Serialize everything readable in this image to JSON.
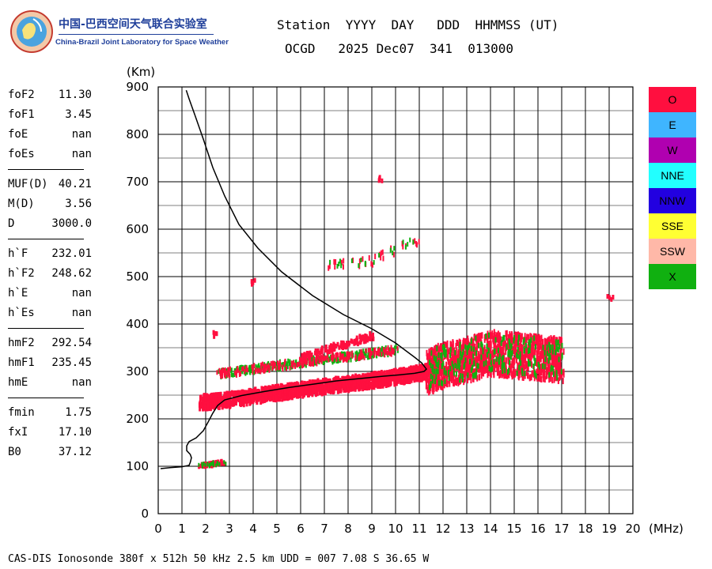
{
  "logo": {
    "cn_text": "中国-巴西空间天气联合实验室",
    "en_text": "China-Brazil Joint Laboratory for Space Weather"
  },
  "header": {
    "line1": "Station  YYYY  DAY   DDD  HHMMSS (UT)",
    "line2": "OCGD   2025 Dec07  341  013000"
  },
  "params": [
    {
      "k": "foF2",
      "v": "11.30"
    },
    {
      "k": "foF1",
      "v": "3.45"
    },
    {
      "k": "foE",
      "v": "nan"
    },
    {
      "k": "foEs",
      "v": "nan"
    },
    {
      "k": "MUF(D)",
      "v": "40.21"
    },
    {
      "k": "M(D)",
      "v": "3.56"
    },
    {
      "k": "D",
      "v": "3000.0"
    },
    {
      "k": "h`F",
      "v": "232.01"
    },
    {
      "k": "h`F2",
      "v": "248.62"
    },
    {
      "k": "h`E",
      "v": "nan"
    },
    {
      "k": "h`Es",
      "v": "nan"
    },
    {
      "k": "hmF2",
      "v": "292.54"
    },
    {
      "k": "hmF1",
      "v": "235.45"
    },
    {
      "k": "hmE",
      "v": "nan"
    },
    {
      "k": "fmin",
      "v": "1.75"
    },
    {
      "k": "fxI",
      "v": "17.10"
    },
    {
      "k": "B0",
      "v": "37.12"
    }
  ],
  "legend": [
    {
      "label": "O",
      "color": "#ff0f3f",
      "text_color": "#000000"
    },
    {
      "label": "E",
      "color": "#3fb5ff",
      "text_color": "#000000"
    },
    {
      "label": "W",
      "color": "#b000b0",
      "text_color": "#000000"
    },
    {
      "label": "NNE",
      "color": "#22ffff",
      "text_color": "#000000"
    },
    {
      "label": "NNW",
      "color": "#2200e0",
      "text_color": "#000000"
    },
    {
      "label": "SSE",
      "color": "#ffff33",
      "text_color": "#000000"
    },
    {
      "label": "SSW",
      "color": "#ffb8a8",
      "text_color": "#000000"
    },
    {
      "label": "X",
      "color": "#10b010",
      "text_color": "#000000"
    }
  ],
  "footer": "CAS-DIS Ionosonde 380f x 512h 50 kHz 2.5 km UDD = 007 7.08 S 36.65 W",
  "chart_data": {
    "type": "scatter",
    "xlabel": "(MHz)",
    "ylabel": "(Km)",
    "xlim": [
      0,
      20
    ],
    "ylim": [
      0,
      900
    ],
    "x_ticks": [
      0,
      1,
      2,
      3,
      4,
      5,
      6,
      7,
      8,
      9,
      10,
      11,
      12,
      13,
      14,
      15,
      16,
      17,
      18,
      19,
      20
    ],
    "y_ticks": [
      0,
      100,
      200,
      300,
      400,
      500,
      600,
      700,
      800,
      900
    ],
    "grid": true,
    "profile": {
      "x": [
        0.1,
        0.5,
        1.0,
        1.3,
        1.35,
        1.4,
        1.35,
        1.2,
        1.2,
        1.3,
        1.6,
        1.9,
        2.1,
        2.3,
        2.5,
        2.8,
        3.5,
        4.5,
        5.5,
        6.5,
        7.5,
        8.5,
        9.5,
        10.2,
        10.8,
        11.2,
        11.3,
        11.1,
        10.8,
        10.0,
        9.0,
        7.8,
        6.5,
        5.2,
        4.2,
        3.4,
        2.8,
        2.3,
        1.9,
        1.55,
        1.3,
        1.18
      ],
      "y": [
        95,
        97,
        99,
        102,
        108,
        118,
        125,
        133,
        143,
        152,
        160,
        175,
        193,
        212,
        228,
        240,
        249,
        258,
        266,
        273,
        280,
        285,
        290,
        293,
        296,
        300,
        305,
        318,
        330,
        360,
        390,
        420,
        460,
        510,
        560,
        610,
        670,
        730,
        790,
        840,
        875,
        893
      ]
    },
    "o_trace": [
      {
        "x": 1.75,
        "y": 240
      },
      {
        "x": 2.5,
        "y": 243
      },
      {
        "x": 3.5,
        "y": 250
      },
      {
        "x": 4.5,
        "y": 257
      },
      {
        "x": 5.5,
        "y": 264
      },
      {
        "x": 6.5,
        "y": 271
      },
      {
        "x": 7.5,
        "y": 277
      },
      {
        "x": 8.5,
        "y": 283
      },
      {
        "x": 9.5,
        "y": 290
      },
      {
        "x": 10.5,
        "y": 298
      },
      {
        "x": 11.3,
        "y": 305
      },
      {
        "x": 12.0,
        "y": 320
      },
      {
        "x": 13.0,
        "y": 330
      },
      {
        "x": 14.0,
        "y": 345
      },
      {
        "x": 15.0,
        "y": 340
      },
      {
        "x": 16.0,
        "y": 335
      },
      {
        "x": 17.0,
        "y": 330
      }
    ],
    "x_trace": [
      {
        "x": 2.5,
        "y": 300
      },
      {
        "x": 4.0,
        "y": 310
      },
      {
        "x": 5.5,
        "y": 320
      },
      {
        "x": 7.0,
        "y": 330
      },
      {
        "x": 8.5,
        "y": 340
      },
      {
        "x": 10.0,
        "y": 350
      }
    ],
    "echoes_upper": [
      {
        "x": 6.0,
        "y": 335
      },
      {
        "x": 7.0,
        "y": 350
      },
      {
        "x": 8.0,
        "y": 365
      },
      {
        "x": 9.0,
        "y": 380
      }
    ],
    "second_hop": [
      {
        "x": 7.0,
        "y": 530
      },
      {
        "x": 8.0,
        "y": 530
      },
      {
        "x": 9.0,
        "y": 540
      },
      {
        "x": 10.0,
        "y": 565
      },
      {
        "x": 11.0,
        "y": 580
      }
    ],
    "isolated": [
      {
        "x": 9.3,
        "y": 710
      },
      {
        "x": 19.0,
        "y": 460
      },
      {
        "x": 2.4,
        "y": 380
      },
      {
        "x": 4.0,
        "y": 495
      }
    ],
    "e_layer": [
      {
        "x": 1.7,
        "y": 105
      },
      {
        "x": 2.2,
        "y": 108
      },
      {
        "x": 2.8,
        "y": 113
      }
    ]
  }
}
